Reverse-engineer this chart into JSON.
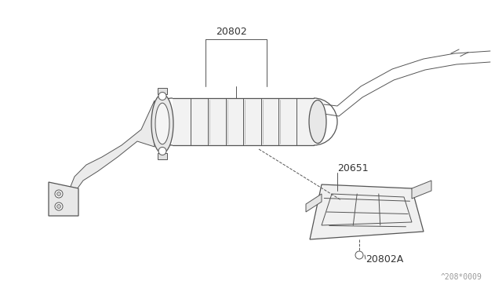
{
  "background_color": "#ffffff",
  "line_color": "#555555",
  "label_color": "#333333",
  "figsize": [
    6.4,
    3.72
  ],
  "dpi": 100,
  "watermark": "^208*0009"
}
